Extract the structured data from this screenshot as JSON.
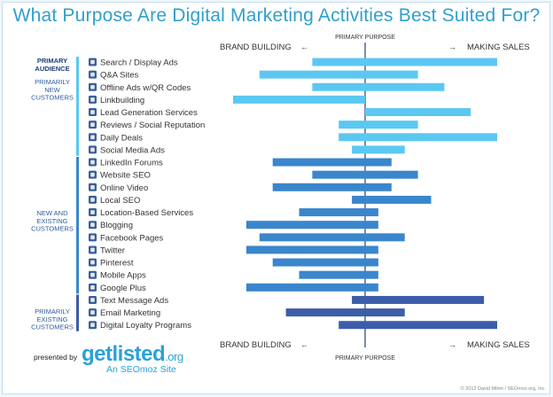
{
  "title": "What Purpose Are Digital Marketing Activities Best Suited For?",
  "axis": {
    "left": "BRAND BUILDING",
    "right": "MAKING SALES",
    "center_top": "PRIMARY PURPOSE",
    "center_bottom": "PRIMARY PURPOSE"
  },
  "colors": {
    "title": "#2f9fcf",
    "primarily_new": "#5bc8f2",
    "new_and_existing": "#3a86cc",
    "primarily_existing": "#3c5da9",
    "sidebar_accent": "#2f7cc4"
  },
  "audience_groups": [
    {
      "label": "PRIMARY AUDIENCE",
      "lines": [
        "PRIMARY",
        "AUDIENCE"
      ]
    },
    {
      "label": "PRIMARILY NEW CUSTOMERS",
      "lines": [
        "PRIMARILY",
        "NEW",
        "CUSTOMERS"
      ]
    },
    {
      "label": "NEW AND EXISTING CUSTOMERS",
      "lines": [
        "NEW AND",
        "EXISTING",
        "CUSTOMERS"
      ]
    },
    {
      "label": "PRIMARILY EXISTING CUSTOMERS",
      "lines": [
        "PRIMARILY",
        "EXISTING",
        "CUSTOMERS"
      ]
    }
  ],
  "chart_data": {
    "type": "bar",
    "orientation": "horizontal",
    "title": "What Purpose Are Digital Marketing Activities Best Suited For?",
    "xlabel": "PRIMARY PURPOSE",
    "x_left_label": "BRAND BUILDING",
    "x_right_label": "MAKING SALES",
    "xlim": [
      -5,
      5
    ],
    "grid": false,
    "categories": [
      "Search / Display Ads",
      "Q&A Sites",
      "Offline Ads w/QR Codes",
      "Linkbuilding",
      "Lead Generation Services",
      "Reviews / Social Reputation",
      "Daily Deals",
      "Social Media Ads",
      "LinkedIn Forums",
      "Website SEO",
      "Online Video",
      "Local SEO",
      "Location-Based Services",
      "Blogging",
      "Facebook Pages",
      "Twitter",
      "Pinterest",
      "Mobile Apps",
      "Google Plus",
      "Text Message Ads",
      "Email Marketing",
      "Digital Loyalty Programs"
    ],
    "ranges": [
      [
        -2,
        5
      ],
      [
        -4,
        2
      ],
      [
        -2,
        3
      ],
      [
        -5,
        0
      ],
      [
        0,
        4
      ],
      [
        -1,
        2
      ],
      [
        -1,
        5
      ],
      [
        -0.5,
        1.5
      ],
      [
        -3.5,
        1
      ],
      [
        -2,
        2
      ],
      [
        -3.5,
        1
      ],
      [
        -0.5,
        2.5
      ],
      [
        -2.5,
        0.5
      ],
      [
        -4.5,
        0.5
      ],
      [
        -4,
        1.5
      ],
      [
        -4.5,
        0.5
      ],
      [
        -3.5,
        0.5
      ],
      [
        -2.5,
        0.5
      ],
      [
        -4.5,
        0.5
      ],
      [
        -0.5,
        4.5
      ],
      [
        -3,
        1.5
      ],
      [
        -1,
        5
      ]
    ],
    "audience": [
      "new",
      "new",
      "new",
      "new",
      "new",
      "new",
      "new",
      "new",
      "both",
      "both",
      "both",
      "both",
      "both",
      "both",
      "both",
      "both",
      "both",
      "both",
      "both",
      "existing",
      "existing",
      "existing"
    ],
    "icons": [
      "search-icon",
      "qa-bubbles-icon",
      "qr-code-icon",
      "link-icon",
      "handshake-icon",
      "speech-bubble-icon",
      "tag-icon",
      "megaphone-icon",
      "linkedin-icon",
      "magnifier-icon",
      "video-camera-icon",
      "map-pin-icon",
      "location-person-icon",
      "rss-icon",
      "facebook-icon",
      "twitter-bird-icon",
      "pinterest-icon",
      "android-icon",
      "google-plus-icon",
      "sms-bubble-icon",
      "envelope-icon",
      "loyalty-grid-icon"
    ]
  },
  "footer": {
    "presented_by": "presented by",
    "logo_main": "getlisted",
    "logo_suffix": ".org",
    "subtitle": "An SEOmoz Site",
    "copyright": "© 2012 David Mihm / SEOmoz.org, Inc."
  }
}
